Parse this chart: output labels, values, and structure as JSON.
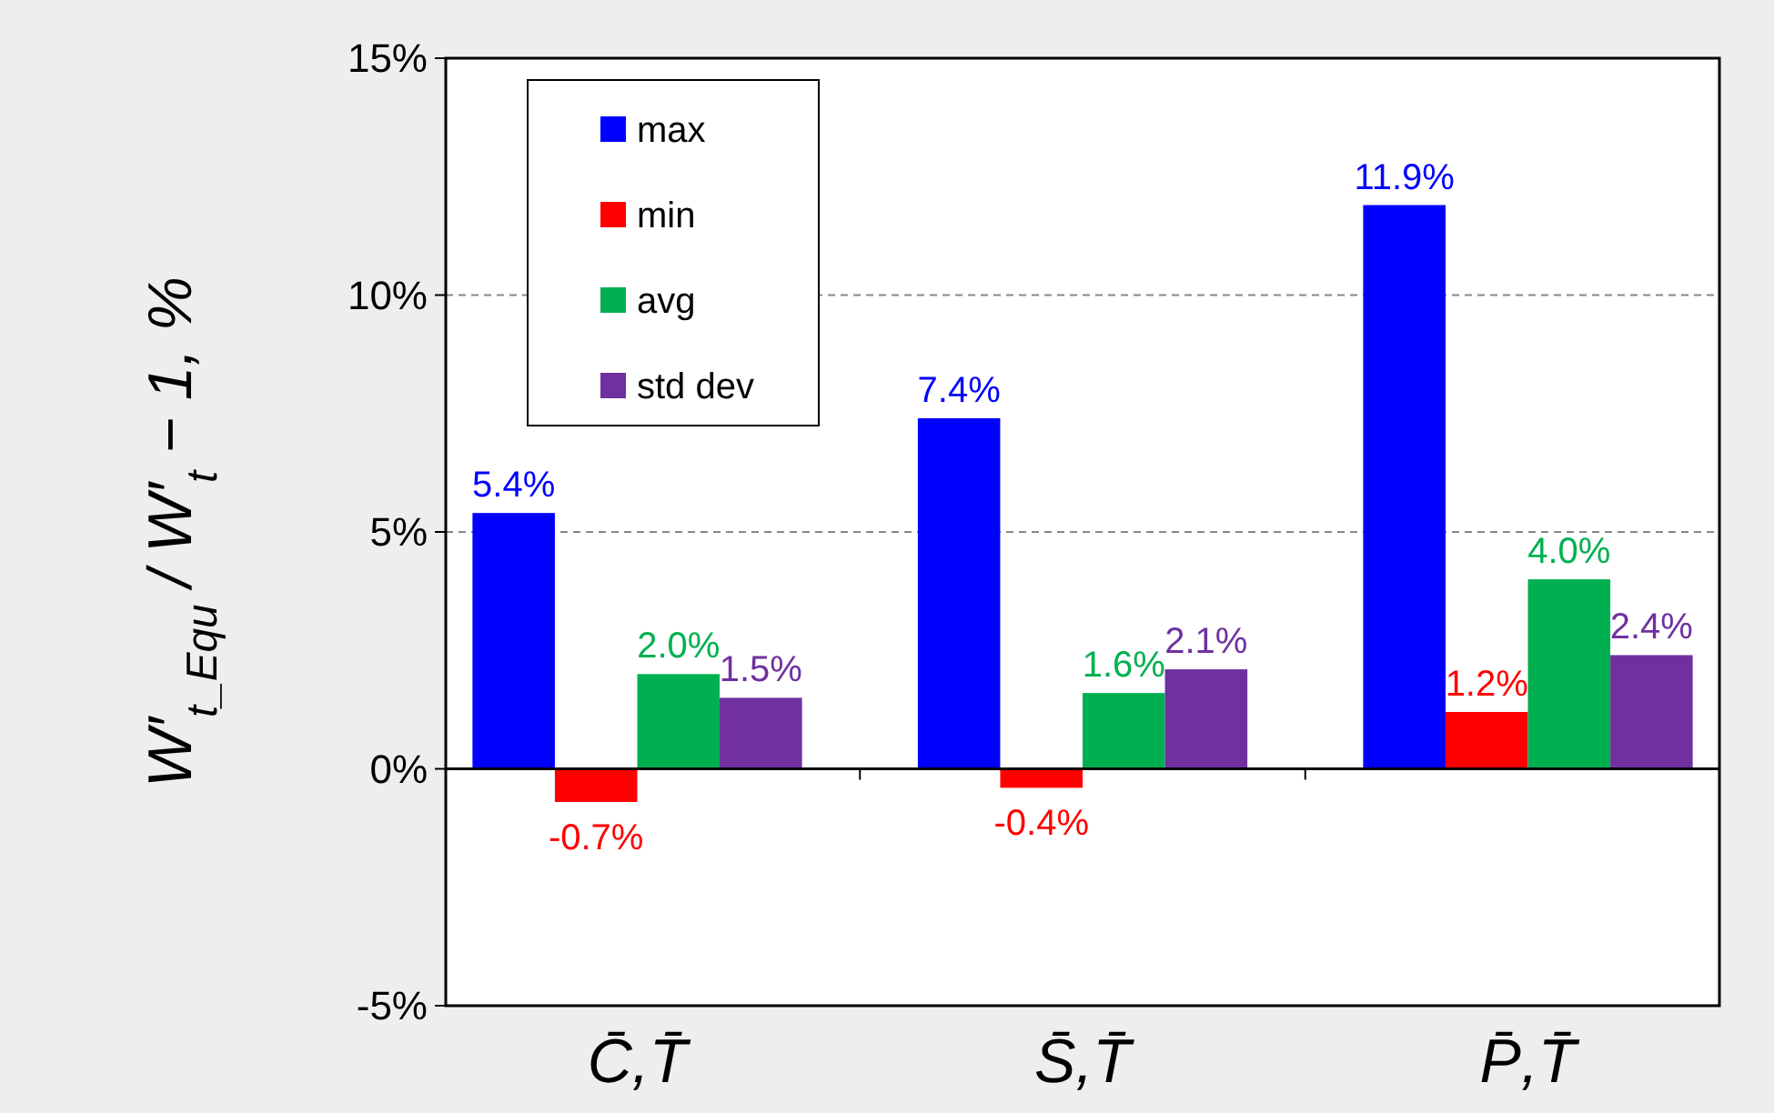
{
  "chart_data": {
    "type": "bar",
    "ylabel": "W′$_{t_Equ}$ / W′$_{t}$ − 1, %",
    "categories": [
      "C̄,T̄",
      "S̄,T̄",
      "P̄,T̄"
    ],
    "series": [
      {
        "name": "max",
        "color": "#0000ff",
        "values": [
          5.4,
          7.4,
          11.9
        ],
        "value_labels": [
          "5.4%",
          "7.4%",
          "11.9%"
        ]
      },
      {
        "name": "min",
        "color": "#ff0000",
        "values": [
          -0.7,
          -0.4,
          1.2
        ],
        "value_labels": [
          "-0.7%",
          "-0.4%",
          "1.2%"
        ]
      },
      {
        "name": "avg",
        "color": "#00b050",
        "values": [
          2.0,
          1.6,
          4.0
        ],
        "value_labels": [
          "2.0%",
          "1.6%",
          "4.0%"
        ]
      },
      {
        "name": "std dev",
        "color": "#7030a0",
        "values": [
          1.5,
          2.1,
          2.4
        ],
        "value_labels": [
          "1.5%",
          "2.1%",
          "2.4%"
        ]
      }
    ],
    "ylim": [
      -5,
      15
    ],
    "yticks": [
      {
        "value": -5,
        "label": "-5%"
      },
      {
        "value": 0,
        "label": "0%"
      },
      {
        "value": 5,
        "label": "5%"
      },
      {
        "value": 10,
        "label": "10%"
      },
      {
        "value": 15,
        "label": "15%"
      }
    ],
    "grid": "y",
    "legend": "top left"
  }
}
